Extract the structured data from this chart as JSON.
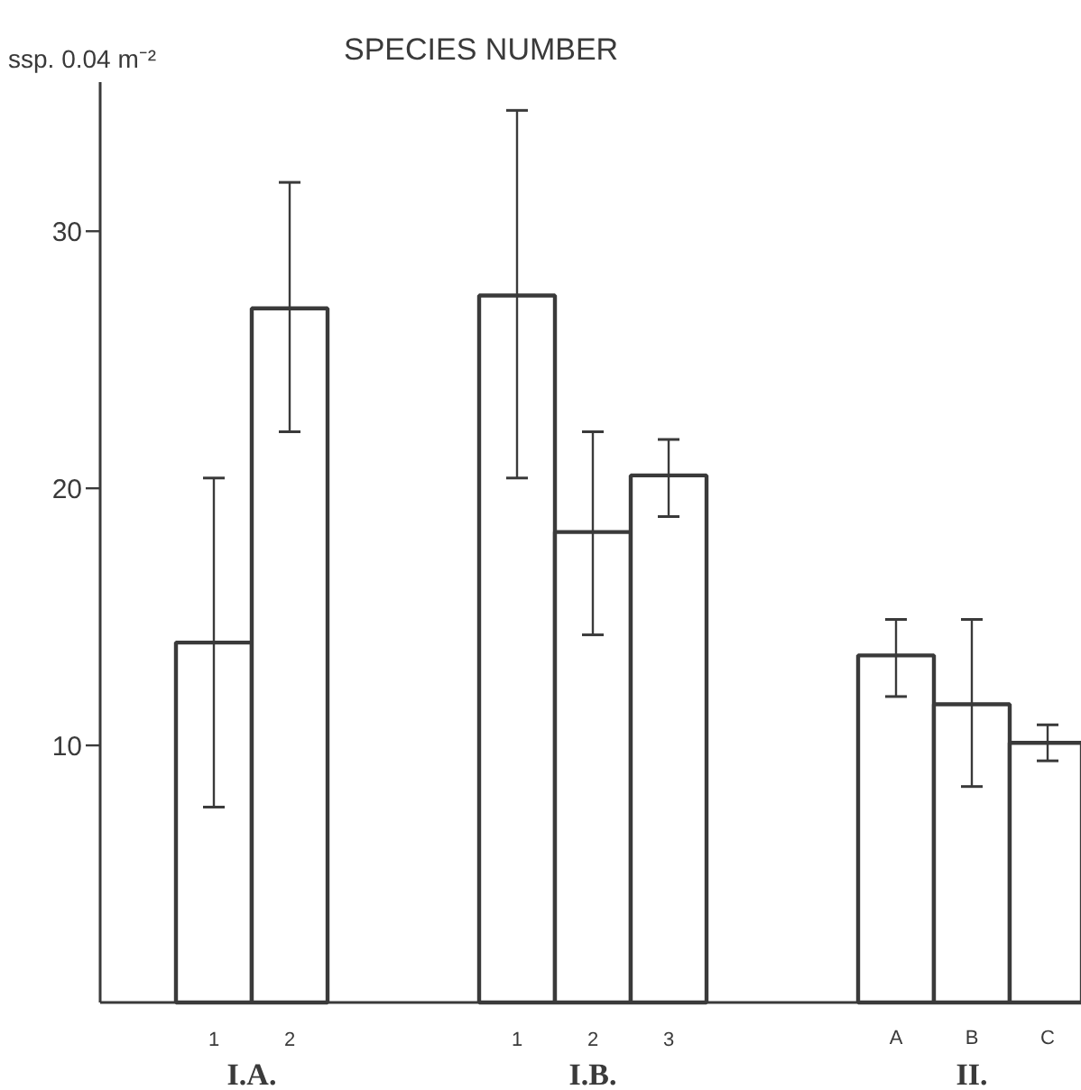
{
  "chart_data": {
    "type": "bar",
    "title": "SPECIES NUMBER",
    "ylabel": "ssp. 0.04 m⁻²",
    "categories": [
      null,
      "1",
      "2",
      null,
      null,
      "1",
      "2",
      "3",
      null,
      null,
      "A",
      "B",
      "C"
    ],
    "values": [
      null,
      14.0,
      27.0,
      null,
      null,
      27.5,
      18.3,
      20.5,
      null,
      null,
      13.5,
      11.6,
      10.1
    ],
    "errors": [
      null,
      [
        7.6,
        20.4
      ],
      [
        22.2,
        31.9
      ],
      null,
      null,
      [
        20.4,
        34.7
      ],
      [
        14.3,
        22.2
      ],
      [
        18.9,
        21.9
      ],
      null,
      null,
      [
        11.9,
        14.9
      ],
      [
        8.4,
        14.9
      ],
      [
        9.4,
        10.8
      ]
    ],
    "annotations": [
      "I.A.",
      "I.B.",
      "II."
    ],
    "color": "#ffffff",
    "ylim": [
      0,
      35.8
    ],
    "yticks": [
      10,
      20,
      30
    ],
    "grid": false
  }
}
